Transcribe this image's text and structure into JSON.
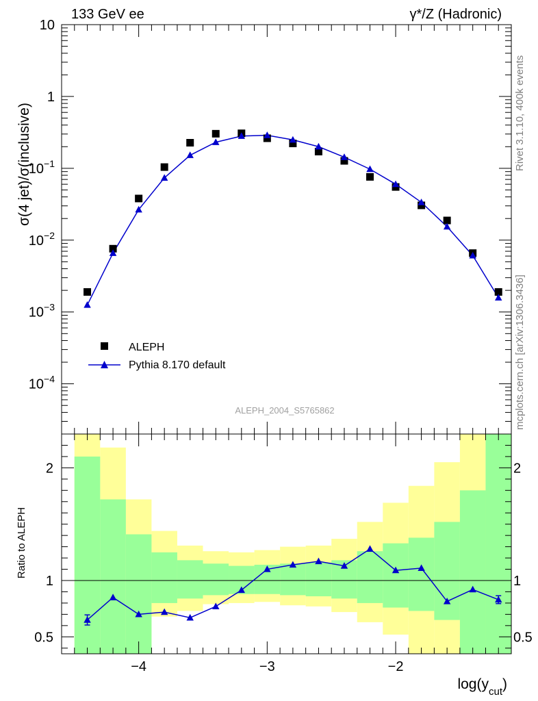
{
  "header": {
    "left": "133 GeV ee",
    "right": "γ*/Z (Hadronic)"
  },
  "side_text": {
    "rivet": "Rivet 3.1.10,  400k events",
    "mcplots": "mcplots.cern.ch [arXiv:1306.3436]"
  },
  "analysis_label": "ALEPH_2004_S5765862",
  "colors": {
    "data": "#000000",
    "mc": "#0000cc",
    "band_inner": "#99ff99",
    "band_outer": "#ffff99"
  },
  "chart_data": [
    {
      "type": "scatter",
      "ylabel": "σ(4 jet)/σ(inclusive)",
      "yscale": "log",
      "xlim": [
        -4.6,
        -1.1
      ],
      "ylim": [
        2e-05,
        10
      ],
      "y_ticks": [
        {
          "value": 10,
          "label": "10"
        },
        {
          "value": 1,
          "label": "1"
        },
        {
          "value": 0.1,
          "label": "10",
          "exp": "−1"
        },
        {
          "value": 0.01,
          "label": "10",
          "exp": "−2"
        },
        {
          "value": 0.001,
          "label": "10",
          "exp": "−3"
        },
        {
          "value": 0.0001,
          "label": "10",
          "exp": "−4"
        }
      ],
      "legend": {
        "position": "bottom-left",
        "entries": [
          "ALEPH",
          "Pythia 8.170 default"
        ]
      },
      "series": [
        {
          "name": "ALEPH",
          "marker": "square",
          "x": [
            -4.4,
            -4.2,
            -4.0,
            -3.8,
            -3.6,
            -3.4,
            -3.2,
            -3.0,
            -2.8,
            -2.6,
            -2.4,
            -2.2,
            -2.0,
            -1.8,
            -1.6,
            -1.4,
            -1.2
          ],
          "y": [
            0.0019,
            0.0076,
            0.038,
            0.104,
            0.227,
            0.303,
            0.307,
            0.262,
            0.222,
            0.171,
            0.127,
            0.076,
            0.055,
            0.0305,
            0.0188,
            0.0066,
            0.0019
          ]
        },
        {
          "name": "Pythia 8.170 default",
          "marker": "triangle",
          "x": [
            -4.4,
            -4.2,
            -4.0,
            -3.8,
            -3.6,
            -3.4,
            -3.2,
            -3.0,
            -2.8,
            -2.6,
            -2.4,
            -2.2,
            -2.0,
            -1.8,
            -1.6,
            -1.4,
            -1.2
          ],
          "y": [
            0.00125,
            0.0066,
            0.0266,
            0.0736,
            0.152,
            0.231,
            0.281,
            0.288,
            0.249,
            0.2,
            0.143,
            0.0973,
            0.0601,
            0.0336,
            0.0154,
            0.0061,
            0.00158
          ]
        }
      ]
    },
    {
      "type": "line",
      "ylabel": "Ratio to ALEPH",
      "xlabel": "log(y",
      "xlabel_sub": "cut",
      "xlabel_close": ")",
      "xlim": [
        -4.6,
        -1.1
      ],
      "ylim": [
        0.35,
        2.3
      ],
      "x_ticks": [
        {
          "value": -4,
          "label": "−4"
        },
        {
          "value": -3,
          "label": "−3"
        },
        {
          "value": -2,
          "label": "−2"
        }
      ],
      "y_ticks": [
        {
          "value": 2,
          "label": "2"
        },
        {
          "value": 1,
          "label": "1"
        },
        {
          "value": 0.5,
          "label": "0.5"
        }
      ],
      "reference_line": 1,
      "bins": [
        {
          "x0": -4.5,
          "x1": -4.3,
          "in_lo": 0.35,
          "in_hi": 2.1,
          "out_lo": 0.35,
          "out_hi": 2.3
        },
        {
          "x0": -4.3,
          "x1": -4.1,
          "in_lo": 0.35,
          "in_hi": 1.72,
          "out_lo": 0.35,
          "out_hi": 2.18
        },
        {
          "x0": -4.1,
          "x1": -3.9,
          "in_lo": 0.35,
          "in_hi": 1.41,
          "out_lo": 0.35,
          "out_hi": 1.72
        },
        {
          "x0": -3.9,
          "x1": -3.7,
          "in_lo": 0.8,
          "in_hi": 1.25,
          "out_lo": 0.68,
          "out_hi": 1.44
        },
        {
          "x0": -3.7,
          "x1": -3.5,
          "in_lo": 0.84,
          "in_hi": 1.18,
          "out_lo": 0.73,
          "out_hi": 1.31
        },
        {
          "x0": -3.5,
          "x1": -3.3,
          "in_lo": 0.87,
          "in_hi": 1.15,
          "out_lo": 0.79,
          "out_hi": 1.26
        },
        {
          "x0": -3.3,
          "x1": -3.1,
          "in_lo": 0.88,
          "in_hi": 1.13,
          "out_lo": 0.8,
          "out_hi": 1.25
        },
        {
          "x0": -3.1,
          "x1": -2.9,
          "in_lo": 0.88,
          "in_hi": 1.14,
          "out_lo": 0.81,
          "out_hi": 1.27
        },
        {
          "x0": -2.9,
          "x1": -2.7,
          "in_lo": 0.87,
          "in_hi": 1.15,
          "out_lo": 0.78,
          "out_hi": 1.3
        },
        {
          "x0": -2.7,
          "x1": -2.5,
          "in_lo": 0.86,
          "in_hi": 1.16,
          "out_lo": 0.77,
          "out_hi": 1.31
        },
        {
          "x0": -2.5,
          "x1": -2.3,
          "in_lo": 0.84,
          "in_hi": 1.18,
          "out_lo": 0.72,
          "out_hi": 1.37
        },
        {
          "x0": -2.3,
          "x1": -2.1,
          "in_lo": 0.8,
          "in_hi": 1.26,
          "out_lo": 0.63,
          "out_hi": 1.52
        },
        {
          "x0": -2.1,
          "x1": -1.9,
          "in_lo": 0.76,
          "in_hi": 1.33,
          "out_lo": 0.52,
          "out_hi": 1.69
        },
        {
          "x0": -1.9,
          "x1": -1.7,
          "in_lo": 0.73,
          "in_hi": 1.38,
          "out_lo": 0.35,
          "out_hi": 1.84
        },
        {
          "x0": -1.7,
          "x1": -1.5,
          "in_lo": 0.65,
          "in_hi": 1.52,
          "out_lo": 0.35,
          "out_hi": 2.05
        },
        {
          "x0": -1.5,
          "x1": -1.3,
          "in_lo": 0.35,
          "in_hi": 1.8,
          "out_lo": 0.35,
          "out_hi": 2.3
        },
        {
          "x0": -1.3,
          "x1": -1.1,
          "in_lo": 0.35,
          "in_hi": 2.3,
          "out_lo": 0.35,
          "out_hi": 2.3
        }
      ],
      "series": [
        {
          "name": "Pythia 8.170 default",
          "marker": "triangle",
          "x": [
            -4.4,
            -4.2,
            -4.0,
            -3.8,
            -3.6,
            -3.4,
            -3.2,
            -3.0,
            -2.8,
            -2.6,
            -2.4,
            -2.2,
            -2.0,
            -1.8,
            -1.6,
            -1.4,
            -1.2
          ],
          "y": [
            0.65,
            0.85,
            0.7,
            0.72,
            0.67,
            0.77,
            0.915,
            1.1,
            1.14,
            1.17,
            1.13,
            1.28,
            1.09,
            1.11,
            0.815,
            0.92,
            0.83
          ],
          "err": [
            0.045,
            0.01,
            0.01,
            0.01,
            0.01,
            0.01,
            0.01,
            0.01,
            0.01,
            0.01,
            0.01,
            0.01,
            0.01,
            0.01,
            0.01,
            0.01,
            0.035
          ]
        }
      ]
    }
  ]
}
